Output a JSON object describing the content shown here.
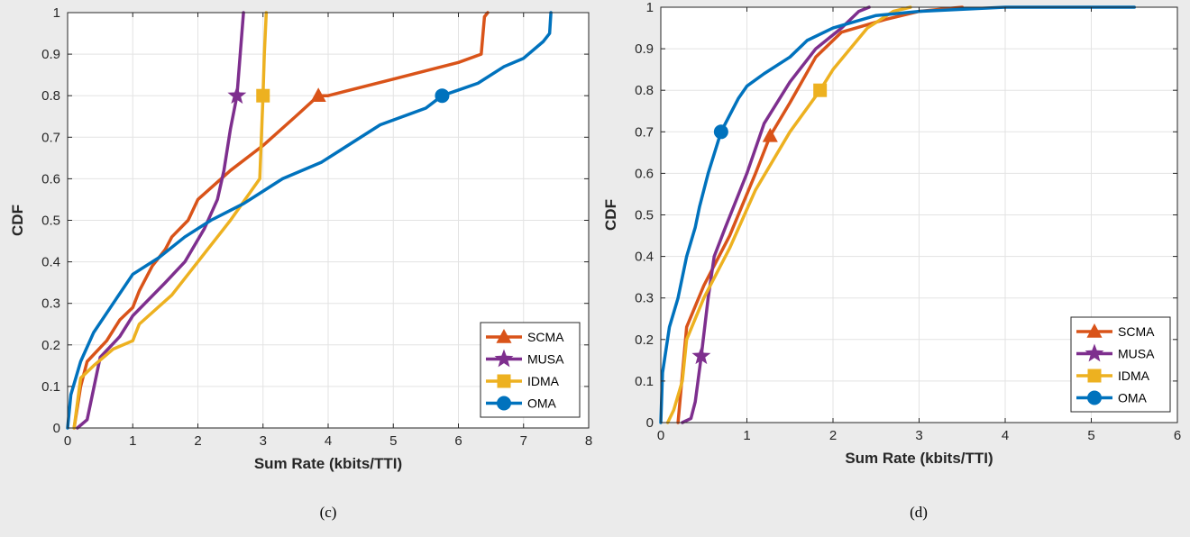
{
  "colors": {
    "SCMA": "#d95319",
    "MUSA": "#7e2f8e",
    "IDMA": "#edb120",
    "OMA": "#0072bd"
  },
  "chart_data": [
    {
      "type": "line",
      "caption": "(c)",
      "xlabel": "Sum Rate (kbits/TTI)",
      "ylabel": "CDF",
      "xlim": [
        0,
        8
      ],
      "ylim": [
        0,
        1
      ],
      "xticks": [
        "0",
        "1",
        "2",
        "3",
        "4",
        "5",
        "6",
        "7",
        "8"
      ],
      "yticks": [
        "0",
        "0.1",
        "0.2",
        "0.3",
        "0.4",
        "0.5",
        "0.6",
        "0.7",
        "0.8",
        "0.9",
        "1"
      ],
      "grid": true,
      "legend": "bottom-right",
      "series": [
        {
          "name": "SCMA",
          "marker": "triangle",
          "marker_at": [
            3.85,
            0.8
          ],
          "x": [
            0.1,
            0.2,
            0.3,
            0.6,
            0.8,
            1.0,
            1.1,
            1.3,
            1.5,
            1.6,
            1.85,
            2.0,
            2.5,
            3.0,
            3.5,
            3.85,
            4.0,
            5.0,
            6.0,
            6.35,
            6.4,
            6.45
          ],
          "y": [
            0.0,
            0.1,
            0.16,
            0.21,
            0.26,
            0.29,
            0.33,
            0.39,
            0.43,
            0.46,
            0.5,
            0.55,
            0.62,
            0.68,
            0.75,
            0.8,
            0.8,
            0.84,
            0.88,
            0.9,
            0.99,
            1.0
          ]
        },
        {
          "name": "MUSA",
          "marker": "star",
          "marker_at": [
            2.6,
            0.8
          ],
          "x": [
            0.15,
            0.3,
            0.5,
            0.8,
            1.0,
            1.5,
            1.8,
            2.1,
            2.3,
            2.4,
            2.5,
            2.6,
            2.65,
            2.7
          ],
          "y": [
            0.0,
            0.02,
            0.17,
            0.22,
            0.27,
            0.35,
            0.4,
            0.48,
            0.55,
            0.62,
            0.72,
            0.8,
            0.9,
            1.0
          ]
        },
        {
          "name": "IDMA",
          "marker": "square",
          "marker_at": [
            3.0,
            0.8
          ],
          "x": [
            0.1,
            0.2,
            0.4,
            0.7,
            1.0,
            1.1,
            1.6,
            2.0,
            2.5,
            2.95,
            3.0,
            3.02,
            3.05
          ],
          "y": [
            0.0,
            0.12,
            0.15,
            0.19,
            0.21,
            0.25,
            0.32,
            0.4,
            0.5,
            0.6,
            0.8,
            0.9,
            1.0
          ]
        },
        {
          "name": "OMA",
          "marker": "circle",
          "marker_at": [
            5.75,
            0.8
          ],
          "x": [
            0.0,
            0.05,
            0.2,
            0.4,
            0.7,
            1.0,
            1.4,
            1.8,
            2.2,
            2.7,
            3.0,
            3.3,
            3.9,
            4.1,
            4.8,
            5.5,
            5.75,
            6.3,
            6.7,
            7.0,
            7.3,
            7.4,
            7.42
          ],
          "y": [
            0.0,
            0.08,
            0.16,
            0.23,
            0.3,
            0.37,
            0.41,
            0.46,
            0.5,
            0.54,
            0.57,
            0.6,
            0.64,
            0.66,
            0.73,
            0.77,
            0.8,
            0.83,
            0.87,
            0.89,
            0.93,
            0.95,
            1.0
          ]
        }
      ]
    },
    {
      "type": "line",
      "caption": "(d)",
      "xlabel": "Sum Rate (kbits/TTI)",
      "ylabel": "CDF",
      "xlim": [
        0,
        6
      ],
      "ylim": [
        0,
        1
      ],
      "xticks": [
        "0",
        "1",
        "2",
        "3",
        "4",
        "5",
        "6"
      ],
      "yticks": [
        "0",
        "0.1",
        "0.2",
        "0.3",
        "0.4",
        "0.5",
        "0.6",
        "0.7",
        "0.8",
        "0.9",
        "1"
      ],
      "grid": true,
      "legend": "bottom-right",
      "series": [
        {
          "name": "SCMA",
          "marker": "triangle",
          "marker_at": [
            1.27,
            0.69
          ],
          "x": [
            0.2,
            0.3,
            0.5,
            0.8,
            1.1,
            1.27,
            1.5,
            1.8,
            2.1,
            2.6,
            3.0,
            3.5
          ],
          "y": [
            0.0,
            0.23,
            0.33,
            0.45,
            0.6,
            0.69,
            0.77,
            0.88,
            0.94,
            0.97,
            0.99,
            1.0
          ]
        },
        {
          "name": "MUSA",
          "marker": "star",
          "marker_at": [
            0.47,
            0.16
          ],
          "x": [
            0.25,
            0.35,
            0.4,
            0.47,
            0.55,
            0.62,
            0.75,
            1.0,
            1.2,
            1.5,
            1.8,
            2.1,
            2.3,
            2.42
          ],
          "y": [
            0.0,
            0.01,
            0.05,
            0.16,
            0.3,
            0.4,
            0.47,
            0.6,
            0.72,
            0.82,
            0.9,
            0.95,
            0.99,
            1.0
          ]
        },
        {
          "name": "IDMA",
          "marker": "square",
          "marker_at": [
            1.85,
            0.8
          ],
          "x": [
            0.08,
            0.15,
            0.25,
            0.3,
            0.5,
            0.8,
            1.1,
            1.5,
            1.85,
            2.0,
            2.4,
            2.7,
            2.9
          ],
          "y": [
            0.0,
            0.03,
            0.1,
            0.2,
            0.3,
            0.42,
            0.56,
            0.7,
            0.8,
            0.85,
            0.95,
            0.99,
            1.0
          ]
        },
        {
          "name": "OMA",
          "marker": "circle",
          "marker_at": [
            0.7,
            0.7
          ],
          "x": [
            0.0,
            0.02,
            0.1,
            0.2,
            0.3,
            0.4,
            0.45,
            0.55,
            0.7,
            0.8,
            0.9,
            1.0,
            1.2,
            1.5,
            1.7,
            2.0,
            2.5,
            3.0,
            4.0,
            5.5
          ],
          "y": [
            0.0,
            0.12,
            0.23,
            0.3,
            0.4,
            0.47,
            0.52,
            0.6,
            0.7,
            0.74,
            0.78,
            0.81,
            0.84,
            0.88,
            0.92,
            0.95,
            0.98,
            0.99,
            1.0,
            1.0
          ]
        }
      ]
    }
  ]
}
